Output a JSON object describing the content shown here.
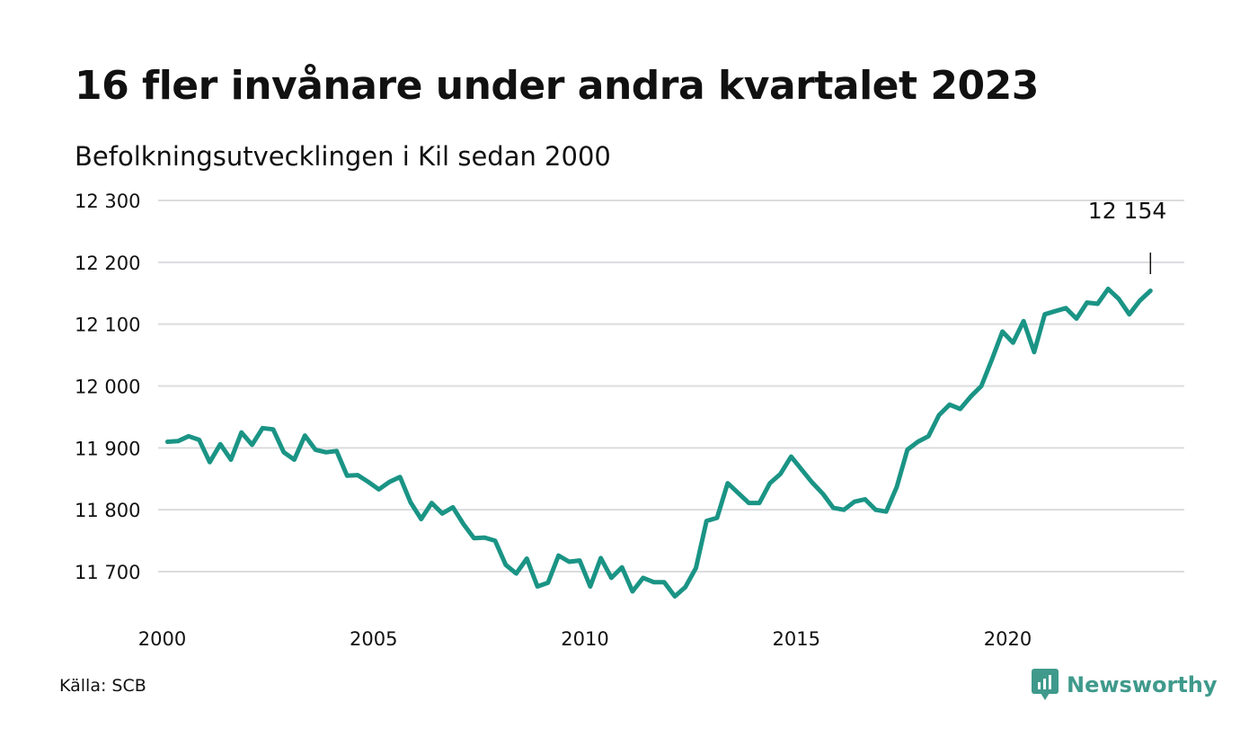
{
  "title": "16 fler invånare under andra kvartalet 2023",
  "subtitle": "Befolkningsutvecklingen i Kil sedan 2000",
  "source": "Källa: SCB",
  "brand": "Newsworthy",
  "colors": {
    "line": "#1a9485",
    "grid": "#dcdcdf",
    "brand": "#3f9a8c"
  },
  "chart_data": {
    "type": "line",
    "title": "16 fler invånare under andra kvartalet 2023",
    "subtitle": "Befolkningsutvecklingen i Kil sedan 2000",
    "xlabel": "",
    "ylabel": "",
    "xlim": [
      2000,
      2024
    ],
    "ylim": [
      11640,
      12320
    ],
    "grid": true,
    "y_ticks": [
      11700,
      11800,
      11900,
      12000,
      12100,
      12200,
      12300
    ],
    "y_tick_labels": [
      "11 700",
      "11 800",
      "11 900",
      "12 000",
      "12 100",
      "12 200",
      "12 300"
    ],
    "x_ticks": [
      2000,
      2005,
      2010,
      2015,
      2020
    ],
    "x_tick_labels": [
      "2000",
      "2005",
      "2010",
      "2015",
      "2020"
    ],
    "annotation": {
      "text": "12 154",
      "x": 2023.375,
      "y": 12154
    },
    "series": [
      {
        "x": [
          2000.125,
          2000.375,
          2000.625,
          2000.875,
          2001.125,
          2001.375,
          2001.625,
          2001.875,
          2002.125,
          2002.375,
          2002.625,
          2002.875,
          2003.125,
          2003.375,
          2003.625,
          2003.875,
          2004.125,
          2004.375,
          2004.625,
          2004.875,
          2005.125,
          2005.375,
          2005.625,
          2005.875,
          2006.125,
          2006.375,
          2006.625,
          2006.875,
          2007.125,
          2007.375,
          2007.625,
          2007.875,
          2008.125,
          2008.375,
          2008.625,
          2008.875,
          2009.125,
          2009.375,
          2009.625,
          2009.875,
          2010.125,
          2010.375,
          2010.625,
          2010.875,
          2011.125,
          2011.375,
          2011.625,
          2011.875,
          2012.125,
          2012.375,
          2012.625,
          2012.875,
          2013.125,
          2013.375,
          2013.625,
          2013.875,
          2014.125,
          2014.375,
          2014.625,
          2014.875,
          2015.125,
          2015.375,
          2015.625,
          2015.875,
          2016.125,
          2016.375,
          2016.625,
          2016.875,
          2017.125,
          2017.375,
          2017.625,
          2017.875,
          2018.125,
          2018.375,
          2018.625,
          2018.875,
          2019.125,
          2019.375,
          2019.625,
          2019.875,
          2020.125,
          2020.375,
          2020.625,
          2020.875,
          2021.125,
          2021.375,
          2021.625,
          2021.875,
          2022.125,
          2022.375,
          2022.625,
          2022.875,
          2023.125,
          2023.375
        ],
        "values": [
          11910,
          11911,
          11919,
          11913,
          11877,
          11906,
          11881,
          11925,
          11905,
          11932,
          11930,
          11893,
          11881,
          11920,
          11897,
          11893,
          11895,
          11855,
          11856,
          11845,
          11833,
          11845,
          11853,
          11812,
          11785,
          11811,
          11794,
          11804,
          11777,
          11754,
          11755,
          11750,
          11711,
          11697,
          11721,
          11676,
          11682,
          11726,
          11716,
          11718,
          11676,
          11722,
          11690,
          11707,
          11668,
          11690,
          11683,
          11683,
          11660,
          11675,
          11706,
          11782,
          11787,
          11843,
          11827,
          11811,
          11811,
          11843,
          11858,
          11886,
          11865,
          11844,
          11826,
          11803,
          11800,
          11813,
          11817,
          11800,
          11797,
          11837,
          11897,
          11910,
          11919,
          11953,
          11970,
          11963,
          11983,
          12000,
          12043,
          12088,
          12070,
          12105,
          12055,
          12116,
          12121,
          12126,
          12109,
          12135,
          12133,
          12157,
          12141,
          12116,
          12138,
          12154
        ]
      }
    ]
  }
}
